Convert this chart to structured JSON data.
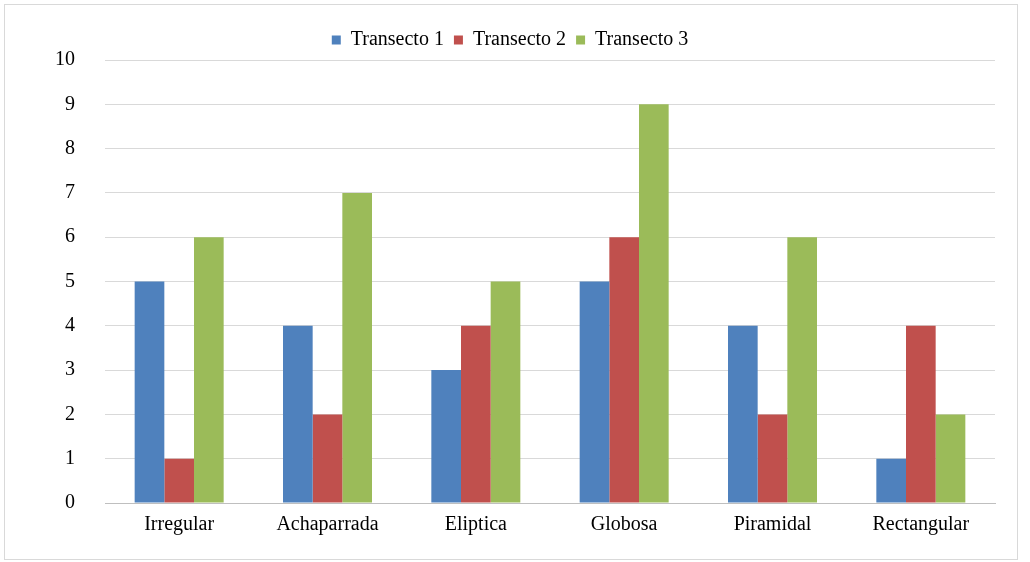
{
  "chart_data": {
    "type": "bar",
    "categories": [
      "Irregular",
      "Achaparrada",
      "Eliptica",
      "Globosa",
      "Piramidal",
      "Rectangular"
    ],
    "series": [
      {
        "name": "Transecto 1",
        "color": "#4f81bd",
        "values": [
          5,
          4,
          3,
          5,
          4,
          1
        ]
      },
      {
        "name": "Transecto 2",
        "color": "#c0504d",
        "values": [
          1,
          2,
          4,
          6,
          2,
          4
        ]
      },
      {
        "name": "Transecto 3",
        "color": "#9bbb59",
        "values": [
          6,
          7,
          5,
          9,
          6,
          2
        ]
      }
    ],
    "ylim": [
      0,
      10
    ],
    "yticks": [
      0,
      1,
      2,
      3,
      4,
      5,
      6,
      7,
      8,
      9,
      10
    ],
    "grid": "y",
    "legend": "top"
  }
}
